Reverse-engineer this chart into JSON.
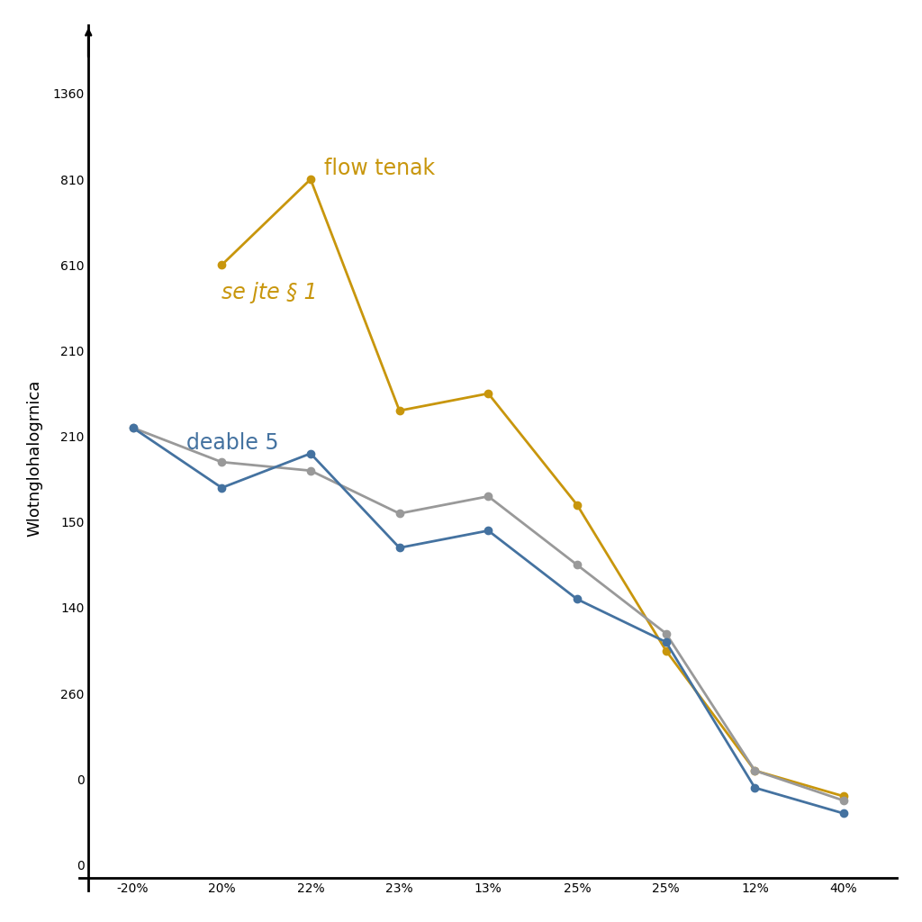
{
  "x_labels": [
    "-20%",
    "20%",
    "22%",
    "23%",
    "13%",
    "25%",
    "25%",
    "12%",
    "40%"
  ],
  "x_positions": [
    0,
    1,
    2,
    3,
    4,
    5,
    6,
    7,
    8
  ],
  "ytick_labels": [
    "1360",
    "810",
    "610",
    "210",
    "210",
    "150",
    "140",
    "260",
    "0",
    "0"
  ],
  "ytick_positions": [
    9,
    8,
    7,
    6,
    5,
    4,
    3,
    2,
    1,
    0
  ],
  "gold_data": [
    null,
    7.0,
    8.0,
    5.3,
    5.5,
    4.2,
    2.5,
    1.1,
    0.8
  ],
  "gray_data": [
    5.1,
    4.7,
    4.6,
    4.1,
    4.3,
    3.5,
    2.7,
    1.1,
    0.75
  ],
  "blue_data": [
    5.1,
    4.4,
    4.8,
    3.7,
    3.9,
    3.1,
    2.6,
    0.9,
    0.6
  ],
  "gold_color": "#C8960C",
  "gray_color": "#999999",
  "blue_color": "#4472A0",
  "background_color": "#ffffff",
  "ylabel": "Wlotnglohalogrnica",
  "figsize": [
    10.24,
    10.24
  ],
  "dpi": 100,
  "label_flow_tenak": "flow tenak",
  "label_se_jte": "se jte § 1",
  "label_deable": "deable 5"
}
